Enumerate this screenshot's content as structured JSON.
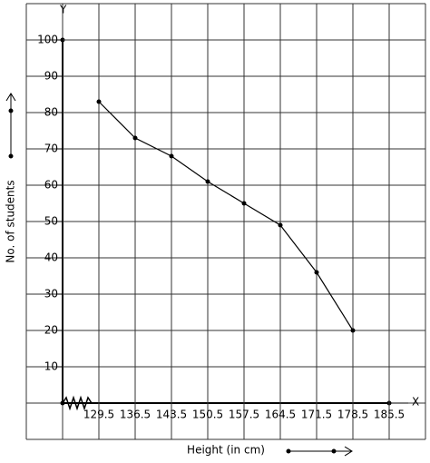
{
  "chart_data": {
    "type": "line",
    "x_label": "Height (in cm)",
    "y_label": "No. of students",
    "x_axis_symbol": "X",
    "y_axis_symbol": "Y",
    "x": [
      129.5,
      136.5,
      143.5,
      150.5,
      157.5,
      164.5,
      171.5,
      178.5
    ],
    "series": [
      {
        "name": "Students",
        "color": "#000000",
        "values": [
          83,
          73,
          68,
          61,
          55,
          49,
          36,
          20
        ]
      }
    ],
    "xlim": [
      115.5,
      192.5
    ],
    "xticks": [
      129.5,
      136.5,
      143.5,
      150.5,
      157.5,
      164.5,
      171.5,
      178.5,
      185.5
    ],
    "ylim": [
      -10,
      110
    ],
    "yticks": [
      10,
      20,
      30,
      40,
      50,
      60,
      70,
      80,
      90,
      100
    ],
    "grid": true
  }
}
